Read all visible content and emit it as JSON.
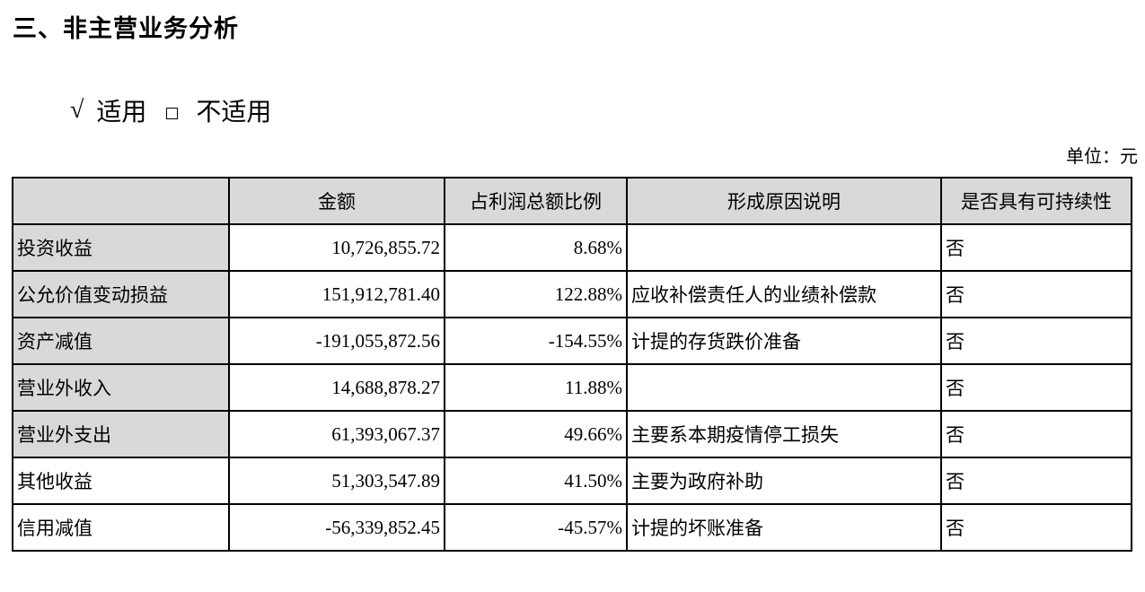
{
  "section_title": "三、非主营业务分析",
  "applicability": {
    "checked_mark": "√",
    "applicable": "适用",
    "not_applicable": "不适用",
    "selected": "适用"
  },
  "unit": "单位：元",
  "table": {
    "headers": [
      "",
      "金额",
      "占利润总额比例",
      "形成原因说明",
      "是否具有可持续性"
    ],
    "rows": [
      {
        "item": "投资收益",
        "amount": "10,726,855.72",
        "ratio": "8.68%",
        "reason": "",
        "sustainable": "否"
      },
      {
        "item": "公允价值变动损益",
        "amount": "151,912,781.40",
        "ratio": "122.88%",
        "reason": "应收补偿责任人的业绩补偿款",
        "sustainable": "否"
      },
      {
        "item": "资产减值",
        "amount": "-191,055,872.56",
        "ratio": "-154.55%",
        "reason": "计提的存货跌价准备",
        "sustainable": "否"
      },
      {
        "item": "营业外收入",
        "amount": "14,688,878.27",
        "ratio": "11.88%",
        "reason": "",
        "sustainable": "否"
      },
      {
        "item": "营业外支出",
        "amount": "61,393,067.37",
        "ratio": "49.66%",
        "reason": "主要系本期疫情停工损失",
        "sustainable": "否"
      },
      {
        "item": "其他收益",
        "amount": "51,303,547.89",
        "ratio": "41.50%",
        "reason": "主要为政府补助",
        "sustainable": "否"
      },
      {
        "item": "信用减值",
        "amount": "-56,339,852.45",
        "ratio": "-45.57%",
        "reason": "计提的坏账准备",
        "sustainable": "否"
      }
    ]
  },
  "colors": {
    "label_shading": "#d9d9d9"
  }
}
